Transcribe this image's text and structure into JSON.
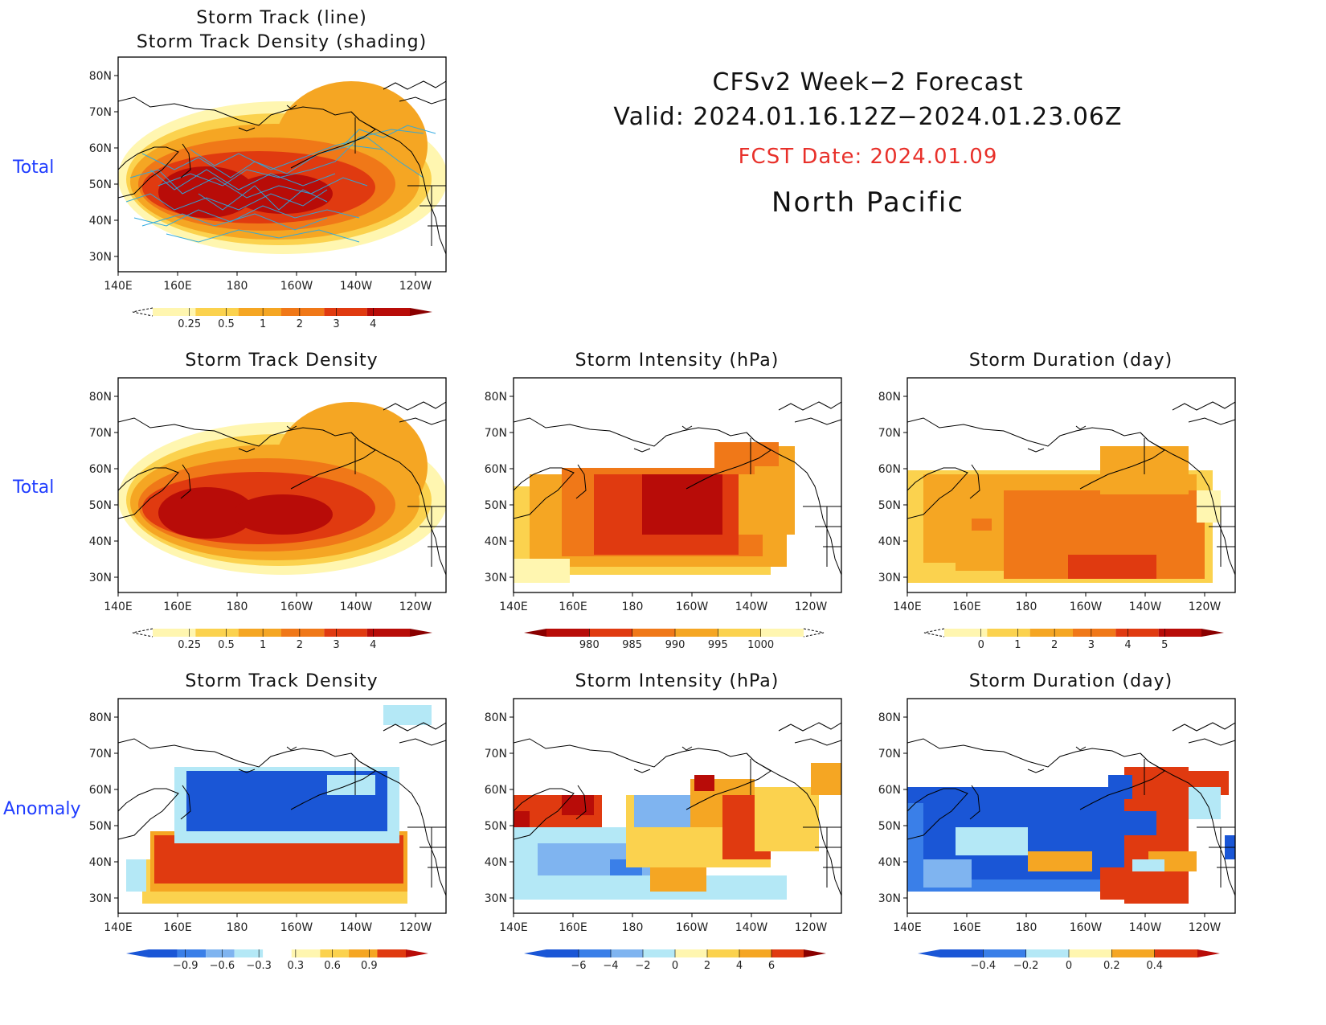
{
  "header": {
    "line1": "CFSv2 Week−2 Forecast",
    "line2": "Valid: 2024.01.16.12Z−2024.01.23.06Z",
    "fcst": "FCST Date: 2024.01.09",
    "region": "North Pacific"
  },
  "row_labels": {
    "top": "Total",
    "middle": "Total",
    "bottom": "Anomaly"
  },
  "lat_ticks": [
    "80N",
    "70N",
    "60N",
    "50N",
    "40N",
    "30N"
  ],
  "lon_ticks": [
    "140E",
    "160E",
    "180",
    "160W",
    "140W",
    "120W"
  ],
  "panels": [
    {
      "id": "top",
      "title1": "Storm Track (line)",
      "title2": "Storm Track Density (shading)",
      "field": "density",
      "lines": true,
      "colorbar": {
        "labels": [
          "0.25",
          "0.5",
          "1",
          "2",
          "3",
          "4"
        ]
      }
    },
    {
      "id": "mid-density",
      "title1": "Storm Track Density",
      "field": "density",
      "colorbar": {
        "labels": [
          "0.25",
          "0.5",
          "1",
          "2",
          "3",
          "4"
        ]
      }
    },
    {
      "id": "mid-intensity",
      "title1": "Storm Intensity (hPa)",
      "field": "intensity",
      "colorbar": {
        "labels": [
          "980",
          "985",
          "990",
          "995",
          "1000"
        ]
      }
    },
    {
      "id": "mid-duration",
      "title1": "Storm Duration (day)",
      "field": "duration",
      "colorbar": {
        "labels": [
          "0",
          "1",
          "2",
          "3",
          "4",
          "5"
        ]
      }
    },
    {
      "id": "anom-density",
      "title1": "Storm Track Density",
      "field": "anom_density",
      "colorbar": {
        "labels": [
          "−0.9",
          "−0.6",
          "−0.3",
          "0.3",
          "0.6",
          "0.9"
        ]
      }
    },
    {
      "id": "anom-intensity",
      "title1": "Storm Intensity (hPa)",
      "field": "anom_intensity",
      "colorbar": {
        "labels": [
          "−6",
          "−4",
          "−2",
          "0",
          "2",
          "4",
          "6"
        ]
      }
    },
    {
      "id": "anom-duration",
      "title1": "Storm Duration (day)",
      "field": "anom_duration",
      "colorbar": {
        "labels": [
          "−0.4",
          "−0.2",
          "0",
          "0.2",
          "0.4"
        ]
      }
    }
  ],
  "colors": {
    "warm": [
      "#fff6b0",
      "#fbd24e",
      "#f5a623",
      "#f07818",
      "#e03a10",
      "#b80c08",
      "#8a0000"
    ],
    "cool": [
      "#1a56d6",
      "#3a7fe8",
      "#7fb4f0",
      "#b4e8f6"
    ],
    "title_accent": "#e8302a",
    "row_label": "#1f3cff",
    "track_line": "#2aa8e0"
  }
}
